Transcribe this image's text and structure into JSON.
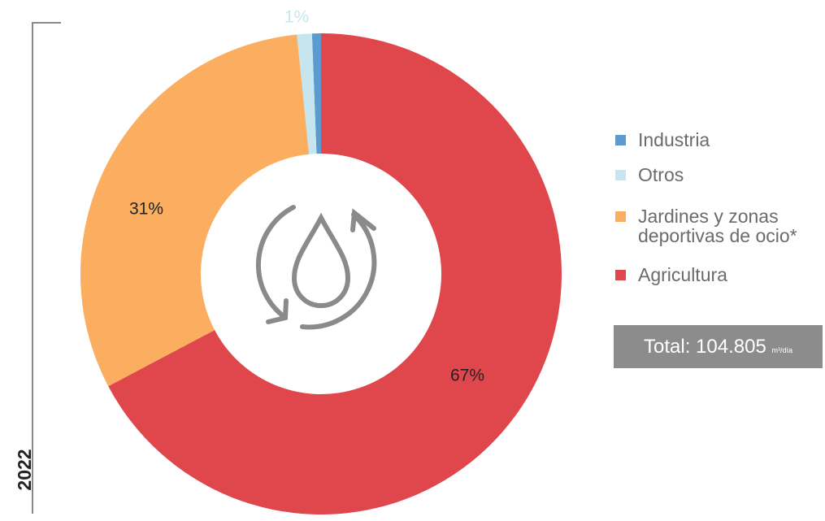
{
  "chart_data": {
    "type": "donut",
    "year": "2022",
    "categories": [
      "Industria",
      "Otros",
      "Jardines y zonas deportivas de ocio*",
      "Agricultura"
    ],
    "values": [
      0.6,
      1,
      31,
      67
    ],
    "value_labels": [
      null,
      "1%",
      "31%",
      "67%"
    ],
    "colors": [
      "#5b9bd0",
      "#c6e6ef",
      "#fbad60",
      "#e0474c"
    ],
    "total": "Total: 104.805",
    "total_unit": "m³/día"
  }
}
